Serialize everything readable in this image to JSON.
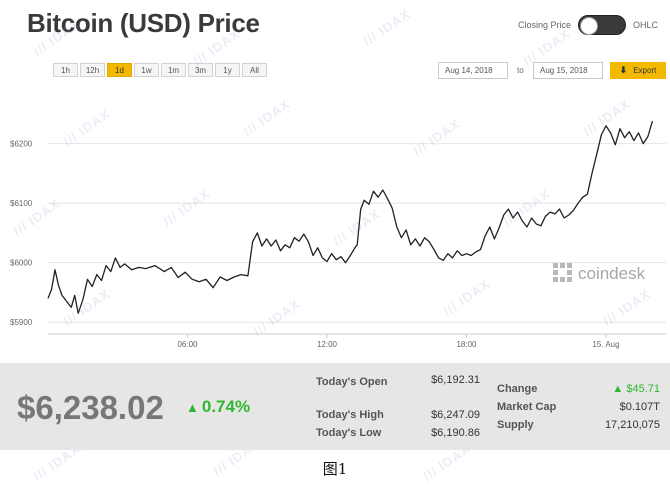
{
  "header": {
    "title": "Bitcoin (USD) Price",
    "toggle_left": "Closing Price",
    "toggle_right": "OHLC"
  },
  "controls": {
    "ranges": [
      "1h",
      "12h",
      "1d",
      "1w",
      "1m",
      "3m",
      "1y",
      "All"
    ],
    "active_range": "1d",
    "date_from": "Aug 14, 2018",
    "date_to_label": "to",
    "date_to": "Aug 15, 2018",
    "export_label": "Export"
  },
  "chart_data": {
    "type": "line",
    "x_ticks": [
      "06:00",
      "12:00",
      "18:00",
      "15. Aug"
    ],
    "y_ticks": [
      "$6200",
      "$6100",
      "$6000",
      "$5900"
    ],
    "y_tick_values": [
      6200,
      6100,
      6000,
      5900
    ],
    "ylim": [
      5860,
      6280
    ],
    "x_tick_hours": [
      6,
      12,
      18,
      24
    ],
    "xlim_hours": [
      0,
      24.6
    ],
    "grid": true,
    "line_color": "#222222",
    "watermark": "coindesk",
    "series": [
      {
        "values": [
          [
            0.0,
            5940
          ],
          [
            0.15,
            5955
          ],
          [
            0.3,
            5988
          ],
          [
            0.45,
            5962
          ],
          [
            0.6,
            5945
          ],
          [
            0.8,
            5935
          ],
          [
            1.0,
            5925
          ],
          [
            1.15,
            5945
          ],
          [
            1.3,
            5915
          ],
          [
            1.5,
            5938
          ],
          [
            1.7,
            5972
          ],
          [
            1.9,
            5960
          ],
          [
            2.1,
            5980
          ],
          [
            2.3,
            5970
          ],
          [
            2.5,
            5995
          ],
          [
            2.7,
            5985
          ],
          [
            2.9,
            6008
          ],
          [
            3.1,
            5992
          ],
          [
            3.3,
            5998
          ],
          [
            3.6,
            5988
          ],
          [
            3.9,
            5992
          ],
          [
            4.2,
            5990
          ],
          [
            4.6,
            5995
          ],
          [
            5.0,
            5985
          ],
          [
            5.3,
            5992
          ],
          [
            5.6,
            5975
          ],
          [
            5.9,
            5984
          ],
          [
            6.2,
            5972
          ],
          [
            6.5,
            5968
          ],
          [
            6.8,
            5972
          ],
          [
            7.1,
            5958
          ],
          [
            7.4,
            5976
          ],
          [
            7.7,
            5970
          ],
          [
            8.0,
            5976
          ],
          [
            8.3,
            5980
          ],
          [
            8.6,
            5978
          ],
          [
            8.8,
            6035
          ],
          [
            9.0,
            6050
          ],
          [
            9.2,
            6028
          ],
          [
            9.4,
            6040
          ],
          [
            9.6,
            6028
          ],
          [
            9.8,
            6038
          ],
          [
            10.0,
            6020
          ],
          [
            10.2,
            6030
          ],
          [
            10.4,
            6025
          ],
          [
            10.6,
            6042
          ],
          [
            10.8,
            6036
          ],
          [
            11.0,
            6048
          ],
          [
            11.2,
            6035
          ],
          [
            11.4,
            6012
          ],
          [
            11.6,
            6025
          ],
          [
            11.8,
            6008
          ],
          [
            12.0,
            6002
          ],
          [
            12.2,
            6015
          ],
          [
            12.4,
            6005
          ],
          [
            12.6,
            6010
          ],
          [
            12.8,
            6000
          ],
          [
            13.0,
            6012
          ],
          [
            13.2,
            6025
          ],
          [
            13.3,
            6030
          ],
          [
            13.45,
            6090
          ],
          [
            13.6,
            6105
          ],
          [
            13.8,
            6098
          ],
          [
            14.0,
            6120
          ],
          [
            14.2,
            6110
          ],
          [
            14.4,
            6122
          ],
          [
            14.6,
            6108
          ],
          [
            14.8,
            6092
          ],
          [
            15.0,
            6060
          ],
          [
            15.2,
            6042
          ],
          [
            15.4,
            6055
          ],
          [
            15.6,
            6030
          ],
          [
            15.8,
            6040
          ],
          [
            16.0,
            6028
          ],
          [
            16.2,
            6042
          ],
          [
            16.4,
            6035
          ],
          [
            16.6,
            6022
          ],
          [
            16.8,
            6008
          ],
          [
            17.0,
            6004
          ],
          [
            17.2,
            6015
          ],
          [
            17.4,
            6008
          ],
          [
            17.6,
            6020
          ],
          [
            17.8,
            6012
          ],
          [
            18.0,
            6015
          ],
          [
            18.2,
            6012
          ],
          [
            18.4,
            6018
          ],
          [
            18.6,
            6022
          ],
          [
            18.8,
            6045
          ],
          [
            19.0,
            6060
          ],
          [
            19.2,
            6040
          ],
          [
            19.4,
            6058
          ],
          [
            19.6,
            6080
          ],
          [
            19.8,
            6090
          ],
          [
            20.0,
            6075
          ],
          [
            20.2,
            6085
          ],
          [
            20.4,
            6070
          ],
          [
            20.6,
            6060
          ],
          [
            20.8,
            6075
          ],
          [
            21.0,
            6065
          ],
          [
            21.2,
            6062
          ],
          [
            21.4,
            6078
          ],
          [
            21.6,
            6085
          ],
          [
            21.8,
            6082
          ],
          [
            22.0,
            6090
          ],
          [
            22.2,
            6075
          ],
          [
            22.4,
            6080
          ],
          [
            22.6,
            6088
          ],
          [
            22.8,
            6100
          ],
          [
            23.0,
            6110
          ],
          [
            23.2,
            6115
          ],
          [
            23.4,
            6150
          ],
          [
            23.6,
            6182
          ],
          [
            23.8,
            6215
          ],
          [
            24.0,
            6230
          ],
          [
            24.2,
            6218
          ],
          [
            24.4,
            6198
          ],
          [
            24.6,
            6225
          ],
          [
            24.8,
            6210
          ],
          [
            25.0,
            6220
          ],
          [
            25.2,
            6205
          ],
          [
            25.4,
            6218
          ],
          [
            25.6,
            6200
          ],
          [
            25.8,
            6212
          ],
          [
            26.0,
            6238
          ]
        ]
      }
    ]
  },
  "stats": {
    "price": "$6,238.02",
    "change_pct": "0.74%",
    "open_label": "Today's Open",
    "open_value": "$6,192.31",
    "high_label": "Today's High",
    "high_value": "$6,247.09",
    "low_label": "Today's Low",
    "low_value": "$6,190.86",
    "change_label": "Change",
    "change_value": "$45.71",
    "mcap_label": "Market Cap",
    "mcap_value": "$0.107T",
    "supply_label": "Supply",
    "supply_value": "17,210,075"
  },
  "caption": "图1",
  "colors": {
    "accent": "#f3b800",
    "positive": "#2eb82e"
  },
  "icons": [
    "export-arrow-icon",
    "coindesk-logo-icon",
    "up-triangle-icon"
  ]
}
